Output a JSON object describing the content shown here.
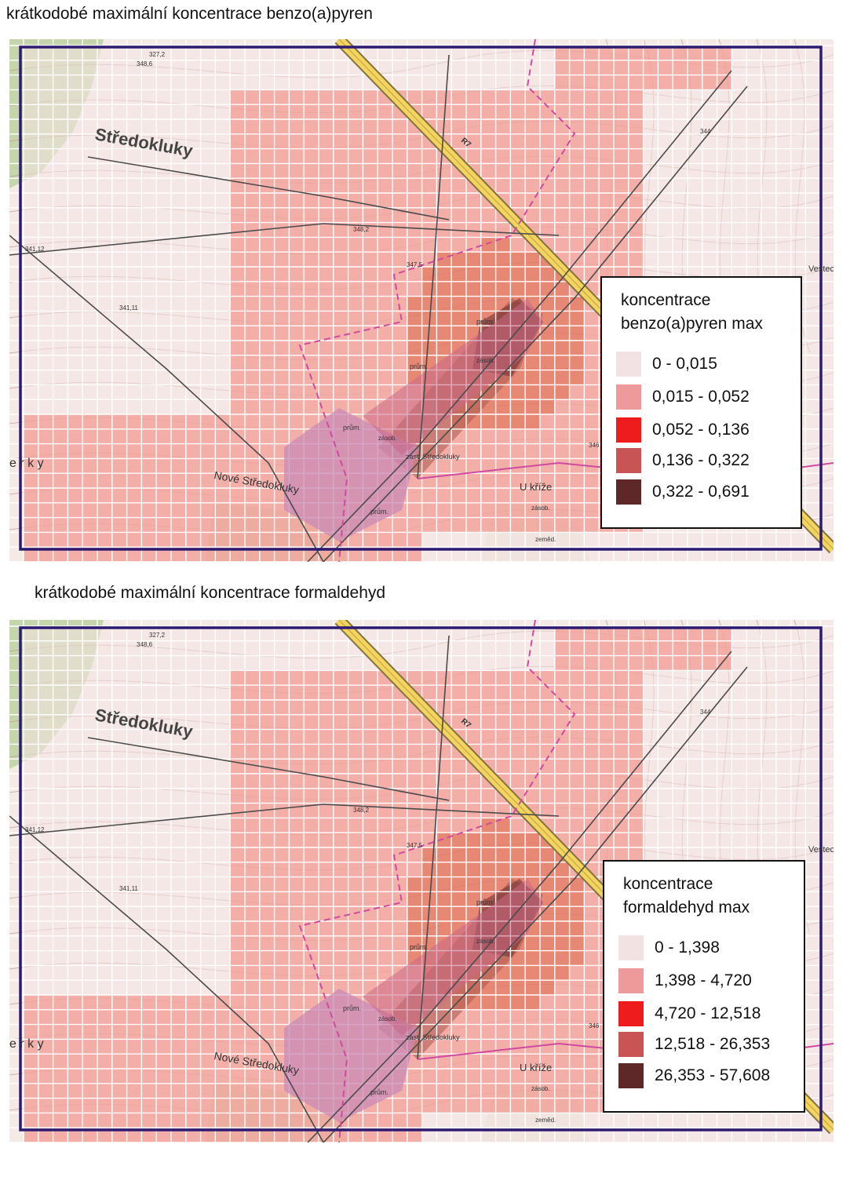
{
  "panels": [
    {
      "title": "krátkodobé maximální koncentrace benzo(a)pyren",
      "legend": {
        "title_line1": "koncentrace",
        "title_line2": "benzo(a)pyren max",
        "classes": [
          {
            "label": "0 - 0,015",
            "color": "#f2e2e4"
          },
          {
            "label": "0,015 - 0,052",
            "color": "#ef9a9a"
          },
          {
            "label": "0,052 - 0,136",
            "color": "#ee1c1c"
          },
          {
            "label": "0,136 - 0,322",
            "color": "#c85454"
          },
          {
            "label": "0,322 - 0,691",
            "color": "#5e2828"
          }
        ]
      }
    },
    {
      "title": "krátkodobé maximální koncentrace formaldehyd",
      "legend": {
        "title_line1": "koncentrace",
        "title_line2": "formaldehyd max",
        "classes": [
          {
            "label": "0 - 1,398",
            "color": "#f2e2e4"
          },
          {
            "label": "1,398 - 4,720",
            "color": "#ef9a9a"
          },
          {
            "label": "4,720 - 12,518",
            "color": "#ee1c1c"
          },
          {
            "label": "12,518 - 26,353",
            "color": "#c85454"
          },
          {
            "label": "26,353 - 57,608",
            "color": "#5e2828"
          }
        ]
      }
    }
  ],
  "map_labels": {
    "town": "Středokluky",
    "village": "Nové Středokluky",
    "place_cross": "U kříže",
    "station": "zast. Středokluky",
    "erky": "e r k y",
    "vestec": "Vestec",
    "road": "R7",
    "prum_1": "prům.",
    "prum_2": "prům.",
    "prum_3": "prům.",
    "prum_4": "prům.",
    "zasob_1": "zásob.",
    "zasob_2": "zásob.",
    "zasob_3": "zásob.",
    "zemed": "zeměd.",
    "elev_1": "348,2",
    "elev_2": "347,5",
    "elev_3": "341,11",
    "elev_4": "344",
    "elev_5": "346",
    "elev_6": "341,12",
    "elev_7": "348,6",
    "elev_8": "327,2"
  }
}
